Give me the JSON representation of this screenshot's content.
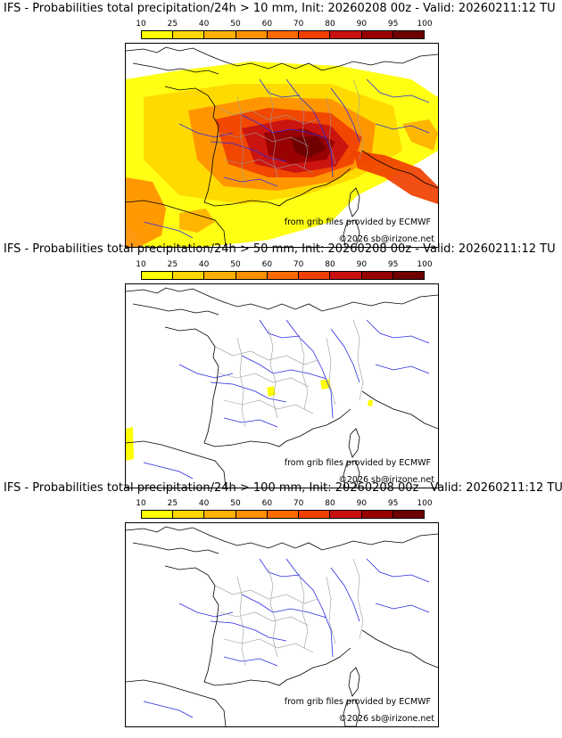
{
  "panels": [
    {
      "title": "IFS - Probabilities total precipitation/24h > 10 mm, Init: 20260208 00z - Valid: 20260211:12 TU",
      "threshold_mm": 10,
      "coverage": "high"
    },
    {
      "title": "IFS - Probabilities total precipitation/24h > 50 mm, Init: 20260208 00z - Valid: 20260211:12 TU",
      "threshold_mm": 50,
      "coverage": "low"
    },
    {
      "title": "IFS - Probabilities total precipitation/24h > 100 mm, Init: 20260208 00z - Valid: 20260211:12 TU",
      "threshold_mm": 100,
      "coverage": "none"
    }
  ],
  "colorbar": {
    "ticks": [
      "10",
      "25",
      "40",
      "50",
      "60",
      "70",
      "80",
      "90",
      "95",
      "100"
    ],
    "colors": [
      "#ffff00",
      "#ffd700",
      "#ffb000",
      "#ff9000",
      "#ff6a00",
      "#f04000",
      "#c81010",
      "#960000",
      "#6e0000"
    ]
  },
  "credits": {
    "source": "from grib files provided by ECMWF",
    "copyright": "©2026 sb@irizone.net"
  },
  "map_colors": {
    "coast": "#000000",
    "rivers": "#2a2ae0",
    "borders": "#9a9a9a"
  }
}
